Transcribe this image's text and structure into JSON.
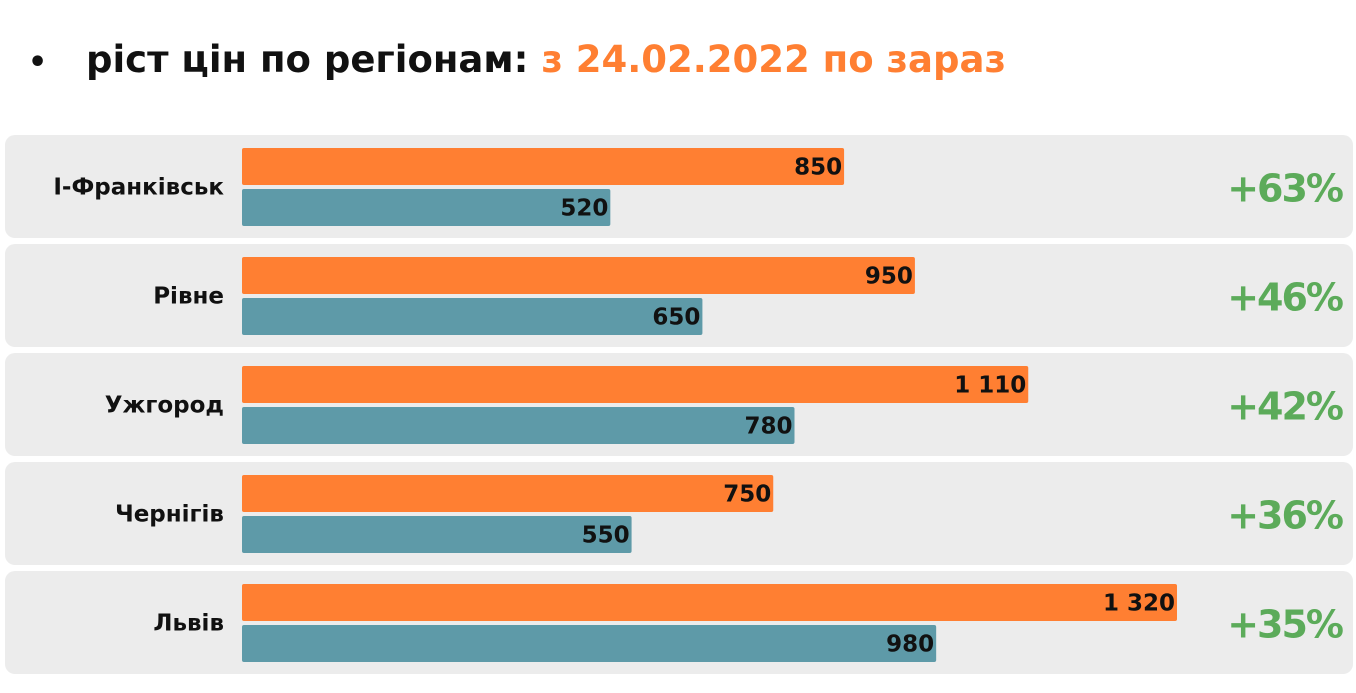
{
  "header": {
    "bullet": "•",
    "title_main": "ріст цін по регіонам:",
    "title_accent": "з 24.02.2022 по зараз"
  },
  "colors": {
    "current": "#ff7f32",
    "before": "#5e9aa8",
    "growth": "#5cab5a",
    "row_background": "#ececec"
  },
  "chart_data": {
    "type": "bar",
    "orientation": "horizontal",
    "categories": [
      "І-Франківськ",
      "Рівне",
      "Ужгород",
      "Чернігів",
      "Львів"
    ],
    "series": [
      {
        "values": [
          850,
          950,
          1110,
          750,
          1320
        ],
        "labels": [
          "850",
          "950",
          "1 110",
          "750",
          "1 320"
        ]
      },
      {
        "values": [
          520,
          650,
          780,
          550,
          980
        ],
        "labels": [
          "520",
          "650",
          "780",
          "550",
          "980"
        ]
      }
    ],
    "growth": [
      "+63%",
      "+46%",
      "+42%",
      "+36%",
      "+35%"
    ],
    "xlim": [
      0,
      1320
    ],
    "grid": false,
    "legend": "none"
  }
}
